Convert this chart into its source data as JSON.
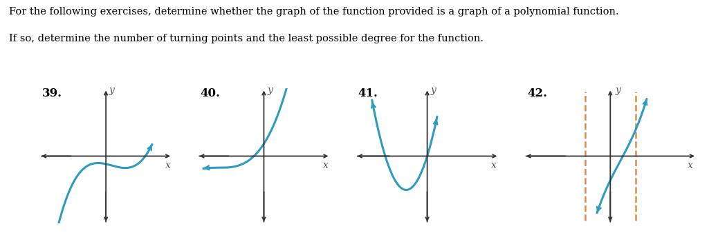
{
  "title_text": "For the following exercises, determine whether the graph of the function provided is a graph of a polynomial function.",
  "subtitle_text": "If so, determine the number of turning points and the least possible degree for the function.",
  "labels": [
    "39.",
    "40.",
    "41.",
    "42."
  ],
  "curve_color": "#2e9bbf",
  "axis_color": "#333333",
  "dashed_color": "#d4823a",
  "bg_color": "#ffffff",
  "title_fontsize": 10.5,
  "label_fontsize": 12,
  "axis_label_fontsize": 10
}
